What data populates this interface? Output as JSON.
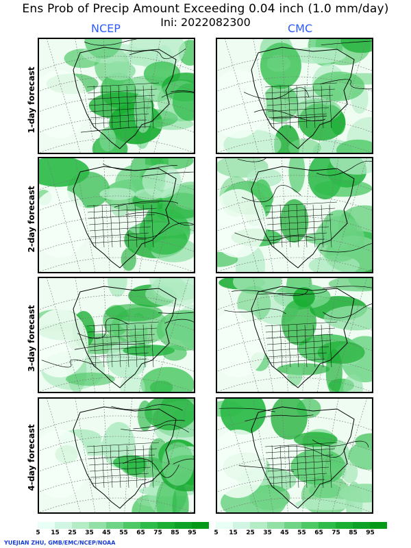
{
  "header": {
    "title": "Ens Prob of Precip Amount Exceeding 0.04 inch (1.0 mm/day)",
    "subtitle": "Ini: 2022082300"
  },
  "columns": [
    {
      "label": "NCEP"
    },
    {
      "label": "CMC"
    }
  ],
  "rows": [
    {
      "label": "1-day forecast"
    },
    {
      "label": "2-day forecast"
    },
    {
      "label": "3-day forecast"
    },
    {
      "label": "4-day forecast"
    }
  ],
  "legend": {
    "labels": [
      "5",
      "15",
      "25",
      "35",
      "45",
      "55",
      "65",
      "75",
      "85",
      "95"
    ],
    "colors": [
      "#e8fff6",
      "#d0f5e2",
      "#b4ecc6",
      "#92e0a6",
      "#6fd486",
      "#4dc865",
      "#2fbb4a",
      "#1aae33",
      "#0ea228",
      "#049a18"
    ]
  },
  "credit": "YUEJIAN ZHU, GMB/EMC/NCEP/NOAA"
}
